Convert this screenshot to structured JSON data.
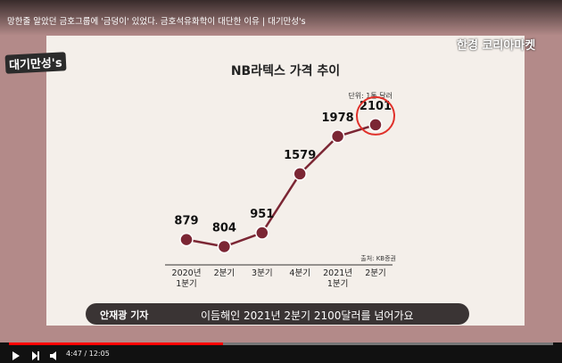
{
  "chart_data": {
    "type": "line",
    "title": "NB라텍스 가격 추이",
    "unit": "단위: 1톤 달러",
    "source": "출처: KB증권",
    "categories": [
      "2020년\n1분기",
      "2분기",
      "3분기",
      "4분기",
      "2021년\n1분기",
      "2분기"
    ],
    "values": [
      879,
      804,
      951,
      1579,
      1978,
      2101
    ],
    "color": "#7b2634",
    "ylim": [
      600,
      2200
    ],
    "highlight_last": true
  },
  "player": {
    "title": "망한줄 알았던 금호그룹에 '금덩이' 있었다. 금호석유화학이 대단한 이유 | 대기만성's",
    "logo": "대기만성's",
    "brand": "한경 코리아마켓",
    "reporter": "안재광 기자",
    "caption": "이듬해인 2021년 2분기 2100달러를 넘어가요",
    "time": "4:47 / 12:05"
  }
}
